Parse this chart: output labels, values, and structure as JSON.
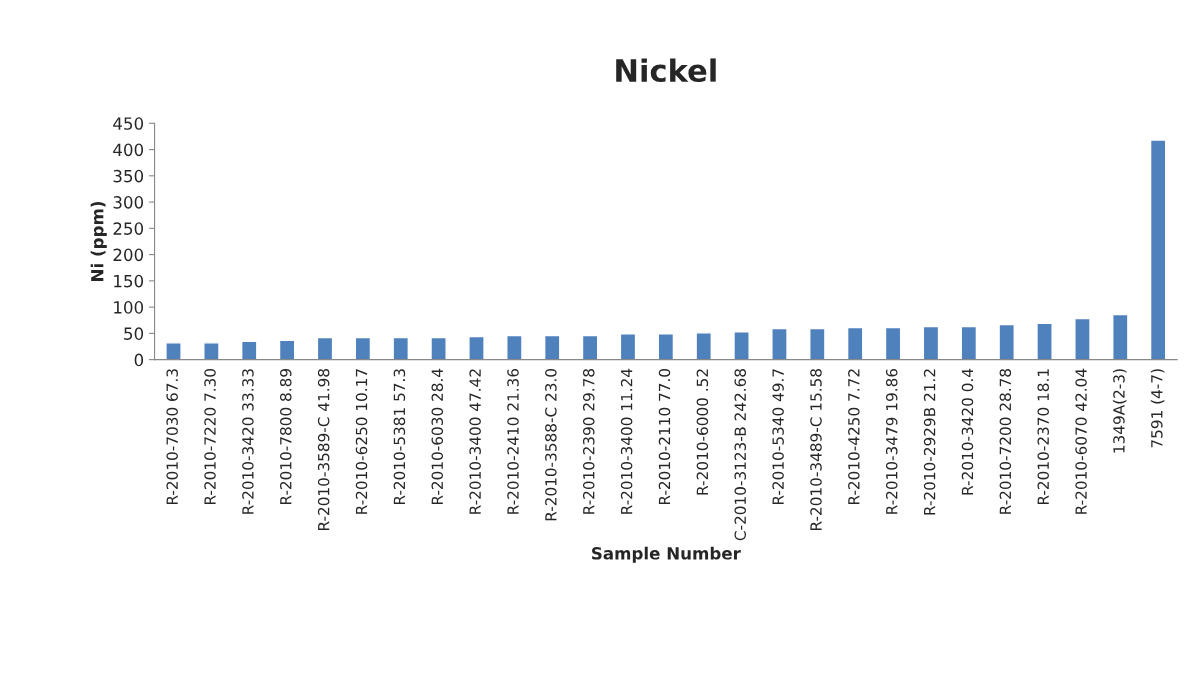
{
  "chart_data": {
    "type": "bar",
    "title": "Nickel",
    "xlabel": "Sample Number",
    "ylabel": "Ni (ppm)",
    "categories": [
      "R-2010-7030 67.3",
      "R-2010-7220 7.30",
      "R-2010-3420 33.33",
      "R-2010-7800 8.89",
      "R-2010-3589-C 41.98",
      "R-2010-6250 10.17",
      "R-2010-5381 57.3",
      "R-2010-6030 28.4",
      "R-2010-3400 47.42",
      "R-2010-2410 21.36",
      "R-2010-3588-C 23.0",
      "R-2010-2390 29.78",
      "R-2010-3400 11.24",
      "R-2010-2110 77.0",
      "R-2010-6000 .52",
      "C-2010-3123-B 242.68",
      "R-2010-5340 49.7",
      "R-2010-3489-C 15.58",
      "R-2010-4250 7.72",
      "R-2010-3479 19.86",
      "R-2010-2929B 21.2",
      "R-2010-3420 0.4",
      "R-2010-7200 28.78",
      "R-2010-2370 18.1",
      "R-2010-6070 42.04",
      "1349A(2-3)",
      "7591 (4-7)"
    ],
    "values": [
      32,
      32,
      35,
      37,
      42,
      42,
      42,
      42,
      44,
      46,
      46,
      46,
      49,
      49,
      51,
      53,
      59,
      59,
      61,
      61,
      63,
      63,
      67,
      69,
      78,
      86,
      418
    ],
    "color": "#4f81bd",
    "ylim": [
      0,
      450
    ],
    "yticks": [
      0,
      50,
      100,
      150,
      200,
      250,
      300,
      350,
      400,
      450
    ],
    "grid": false,
    "legend": false
  }
}
